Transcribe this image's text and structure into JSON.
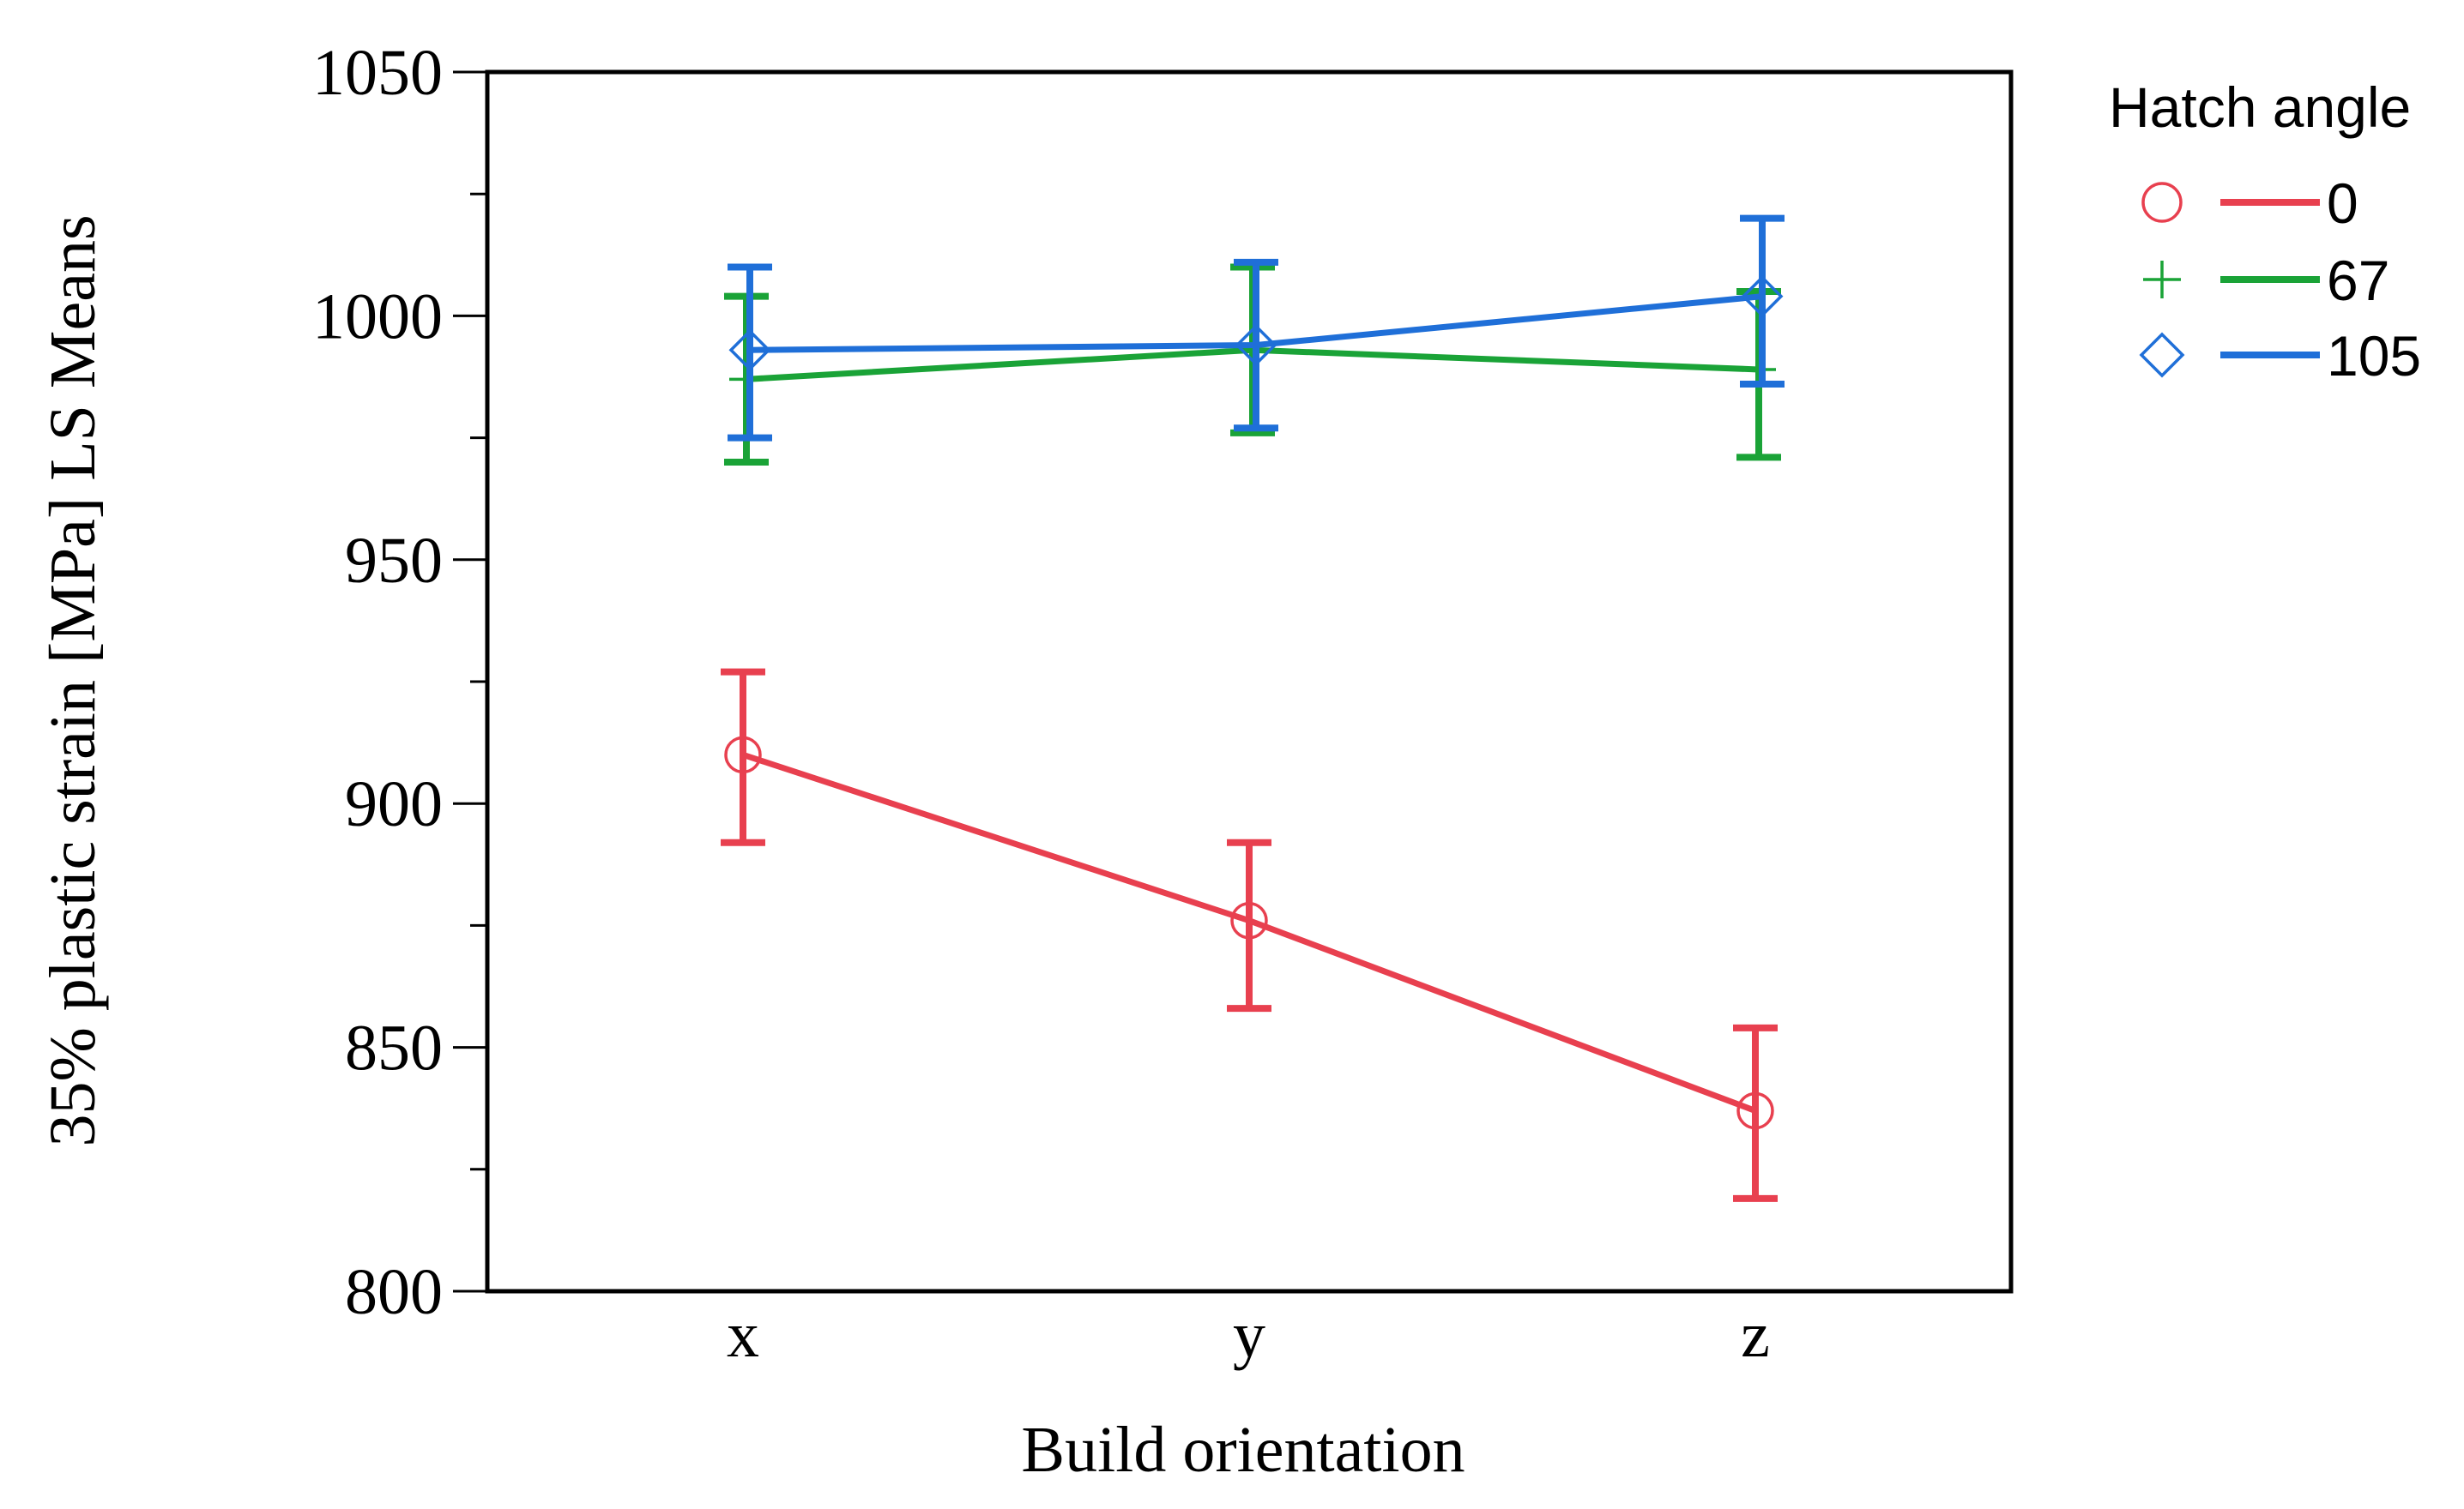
{
  "chart_data": {
    "type": "line",
    "title": "",
    "xlabel": "Build orientation",
    "ylabel": "35% plastic strain [MPa] LS Means",
    "categories": [
      "x",
      "y",
      "z"
    ],
    "ylim": [
      800,
      1050
    ],
    "yticks": [
      800,
      850,
      900,
      950,
      1000,
      1050
    ],
    "yticks_minor": [
      825,
      875,
      925,
      975,
      1025
    ],
    "ytick_labels": [
      "800",
      "850",
      "900",
      "950",
      "1000",
      "1050"
    ],
    "legend_title": "Hatch angle",
    "legend_position": "right",
    "series": [
      {
        "name": "0",
        "marker": "circle",
        "color": "#e8404f",
        "values": [
          910,
          876,
          837
        ],
        "err_low": [
          892,
          858,
          819
        ],
        "err_high": [
          927,
          892,
          854
        ]
      },
      {
        "name": "67",
        "marker": "plus",
        "color": "#1aa337",
        "values": [
          987,
          993,
          989
        ],
        "err_low": [
          970,
          976,
          971
        ],
        "err_high": [
          1004,
          1010,
          1005
        ]
      },
      {
        "name": "105",
        "marker": "diamond",
        "color": "#1f6fd8",
        "values": [
          993,
          994,
          1004
        ],
        "err_low": [
          975,
          977,
          986
        ],
        "err_high": [
          1010,
          1011,
          1020
        ]
      }
    ]
  }
}
